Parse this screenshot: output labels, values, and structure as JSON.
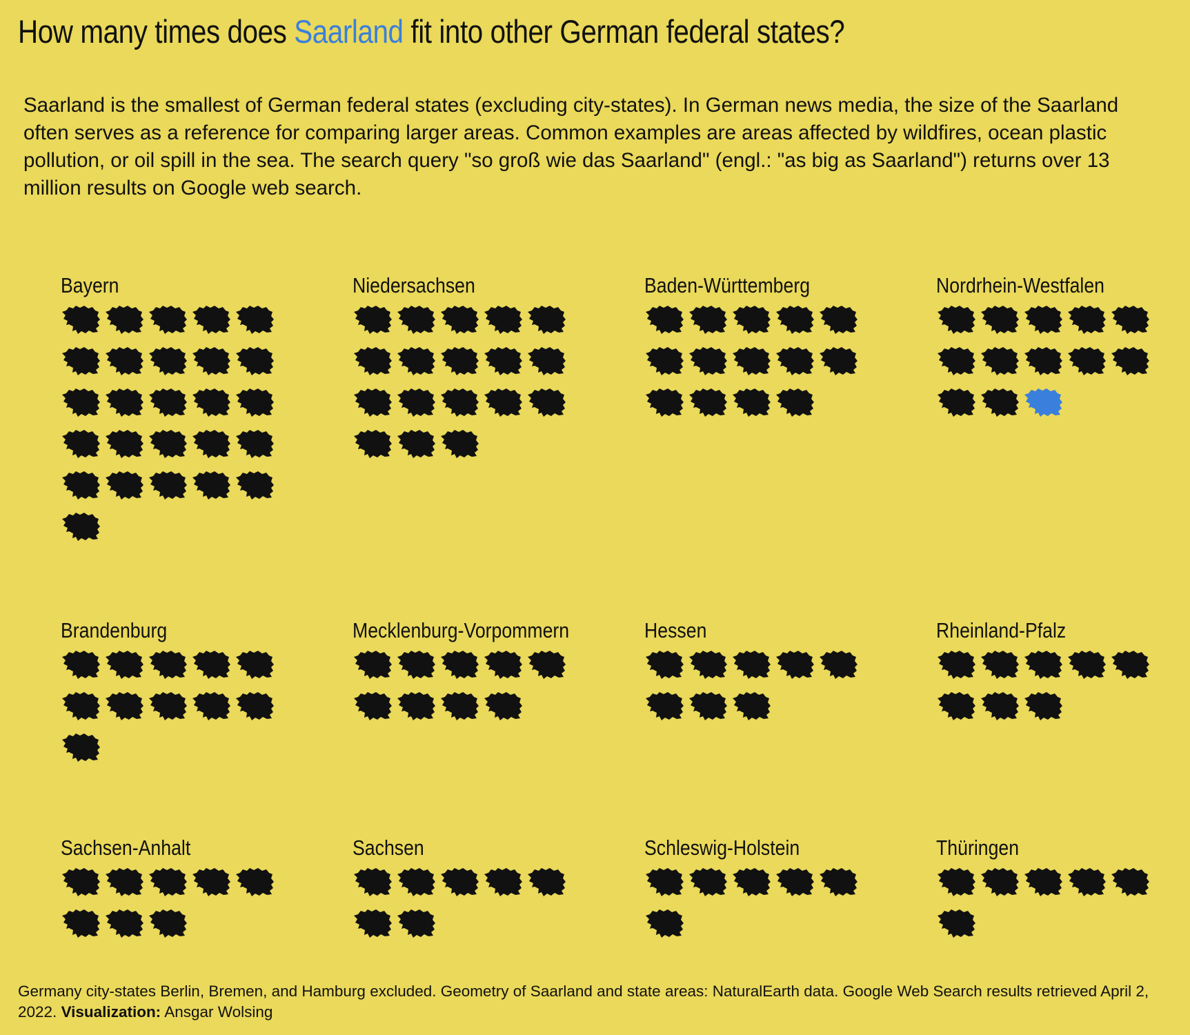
{
  "title": {
    "before": "How many times does ",
    "highlight": "Saarland",
    "after": " fit into other German federal states?"
  },
  "subtitle": "Saarland is the smallest of German federal states (excluding city-states). In German news media, the size of the Saarland often serves as a reference for comparing larger areas. Common examples are areas affected by wildfires, ocean plastic pollution, or oil spill in the sea. The search query \"so groß wie das Saarland\" (engl.: \"as big as Saarland\") returns over 13 million results on Google web search.",
  "caption": {
    "text": "Germany city-states Berlin, Bremen, and Hamburg excluded. Geometry of Saarland and state areas: NaturalEarth data. Google Web Search results retrieved April 2, 2022. ",
    "credit_label": "Visualization:",
    "credit_name": " Ansgar Wolsing"
  },
  "colors": {
    "background": "#EAD95A",
    "icon": "#111111",
    "highlight": "#3A7FDB"
  },
  "icon_name": "saarland-shape-icon",
  "chart_data": {
    "type": "pictogram",
    "unit": "Saarland",
    "states": [
      {
        "name": "Bayern",
        "count": 26
      },
      {
        "name": "Niedersachsen",
        "count": 18
      },
      {
        "name": "Baden-Württemberg",
        "count": 14
      },
      {
        "name": "Nordrhein-Westfalen",
        "count": 13,
        "highlight_last": true
      },
      {
        "name": "Brandenburg",
        "count": 11
      },
      {
        "name": "Mecklenburg-Vorpommern",
        "count": 9
      },
      {
        "name": "Hessen",
        "count": 8
      },
      {
        "name": "Rheinland-Pfalz",
        "count": 8
      },
      {
        "name": "Sachsen-Anhalt",
        "count": 8
      },
      {
        "name": "Sachsen",
        "count": 7
      },
      {
        "name": "Schleswig-Holstein",
        "count": 6
      },
      {
        "name": "Thüringen",
        "count": 6
      }
    ]
  }
}
